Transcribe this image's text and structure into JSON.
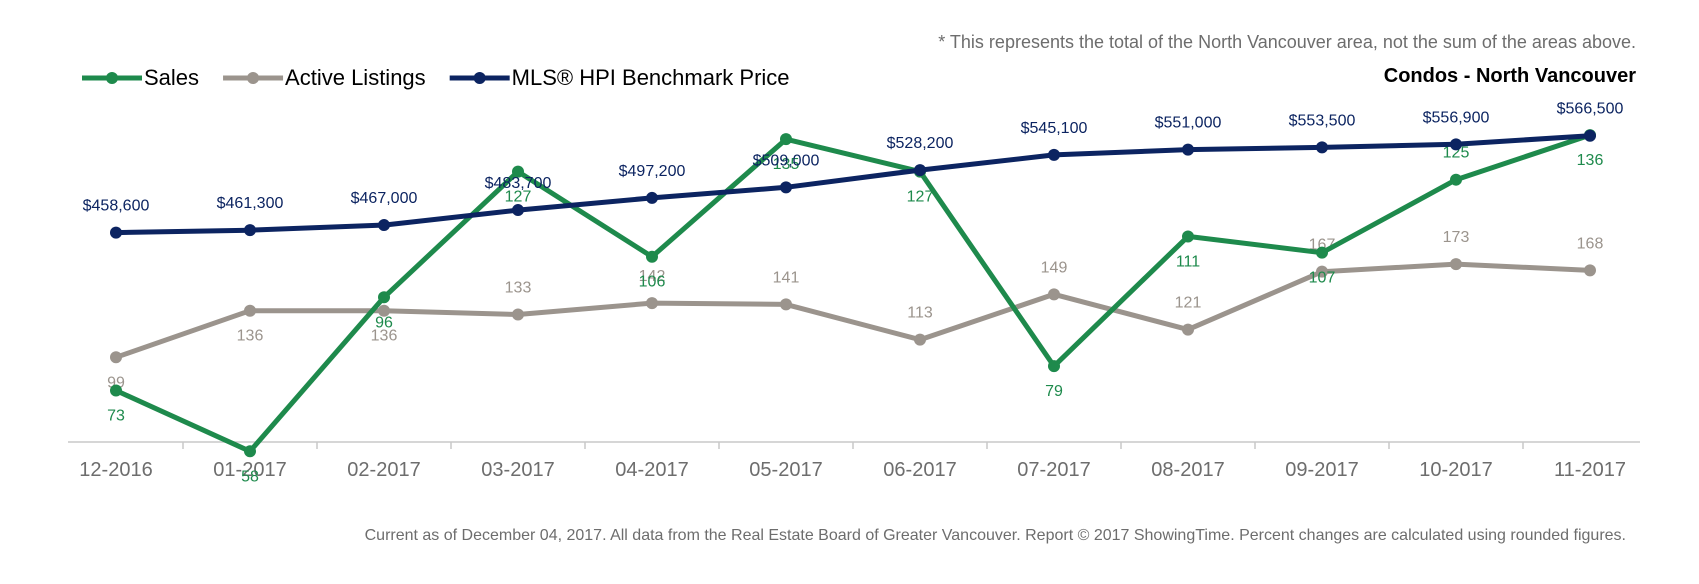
{
  "chart_data": {
    "type": "line",
    "title": "Condos - North Vancouver",
    "note": "* This represents the total of the North Vancouver area, not the sum of the areas above.",
    "footer": "Current as of December 04, 2017. All data from the Real Estate Board of Greater Vancouver. Report © 2017 ShowingTime. Percent changes are calculated using rounded figures.",
    "categories": [
      "12-2016",
      "01-2017",
      "02-2017",
      "03-2017",
      "04-2017",
      "05-2017",
      "06-2017",
      "07-2017",
      "08-2017",
      "09-2017",
      "10-2017",
      "11-2017"
    ],
    "legend_position": "top-left",
    "grid": false,
    "series": [
      {
        "name": "Sales",
        "color": "#1e8a4c",
        "values": [
          73,
          58,
          96,
          127,
          106,
          135,
          127,
          79,
          111,
          107,
          125,
          136
        ],
        "labels": [
          "73",
          "58",
          "96",
          "127",
          "106",
          "135",
          "127",
          "79",
          "111",
          "107",
          "125",
          "136"
        ]
      },
      {
        "name": "Active Listings",
        "color": "#9b948d",
        "values": [
          99,
          136,
          136,
          133,
          142,
          141,
          113,
          149,
          121,
          167,
          173,
          168
        ],
        "labels": [
          "99",
          "136",
          "136",
          "133",
          "142",
          "141",
          "113",
          "149",
          "121",
          "167",
          "173",
          "168"
        ]
      },
      {
        "name": "MLS® HPI Benchmark Price",
        "color": "#0c2461",
        "values": [
          458600,
          461300,
          467000,
          483700,
          497200,
          509000,
          528200,
          545100,
          551000,
          553500,
          556900,
          566500
        ],
        "labels": [
          "$458,600",
          "$461,300",
          "$467,000",
          "$483,700",
          "$497,200",
          "$509,000",
          "$528,200",
          "$545,100",
          "$551,000",
          "$553,500",
          "$556,900",
          "$566,500"
        ]
      }
    ]
  }
}
